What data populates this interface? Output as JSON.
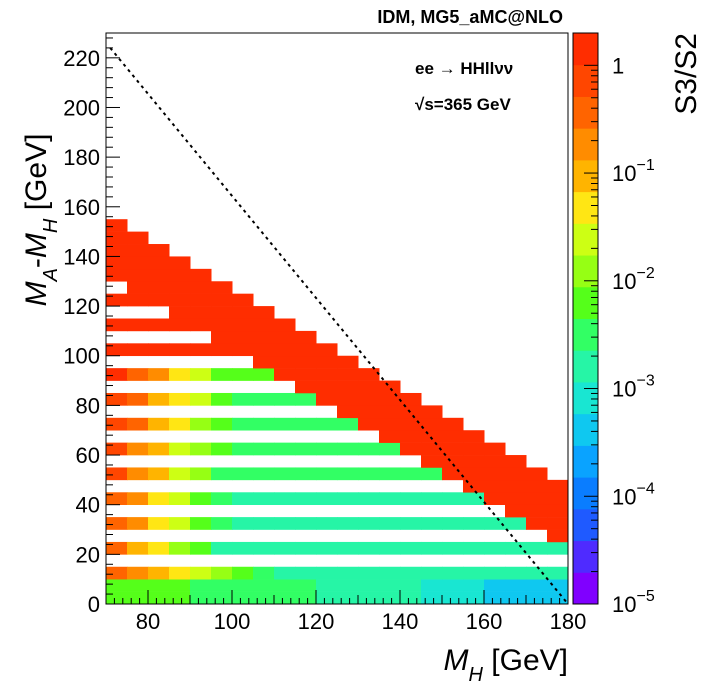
{
  "chart_data": {
    "type": "heatmap",
    "title": "IDM, MG5_aMC@NLO",
    "process_label": "ee → HHllνν",
    "energy_label": "√s=365 GeV",
    "xlabel": "M_H [GeV]",
    "ylabel": "M_A-M_H [GeV]",
    "zlabel": "S3/S2",
    "xlim": [
      70,
      180
    ],
    "ylim": [
      0,
      230
    ],
    "x_ticks": [
      80,
      100,
      120,
      140,
      160,
      180
    ],
    "y_ticks": [
      0,
      20,
      40,
      60,
      80,
      100,
      120,
      140,
      160,
      180,
      200,
      220
    ],
    "z_log_range": [
      -5,
      0.3
    ],
    "z_ticks": [
      {
        "base": "10",
        "exp": "−5",
        "value": -5
      },
      {
        "base": "10",
        "exp": "−4",
        "value": -4
      },
      {
        "base": "10",
        "exp": "−3",
        "value": -3
      },
      {
        "base": "10",
        "exp": "−2",
        "value": -2
      },
      {
        "base": "10",
        "exp": "−1",
        "value": -1
      },
      {
        "base": "1",
        "exp": "",
        "value": 0
      }
    ],
    "diagonal_line": {
      "x": [
        71,
        180
      ],
      "y": [
        224,
        0
      ],
      "style": "dotted"
    },
    "cell_size": {
      "dx": 5,
      "dy": 5
    },
    "palette": [
      "#8000ff",
      "#4f2bff",
      "#1f5aff",
      "#0a7dff",
      "#0aa3ff",
      "#0fc8f0",
      "#19e6d2",
      "#26f5a6",
      "#32ff64",
      "#55ff1a",
      "#96ff14",
      "#cdff14",
      "#ffe614",
      "#ffb400",
      "#ff8c00",
      "#ff6400",
      "#ff4600",
      "#ff2d00"
    ]
  }
}
